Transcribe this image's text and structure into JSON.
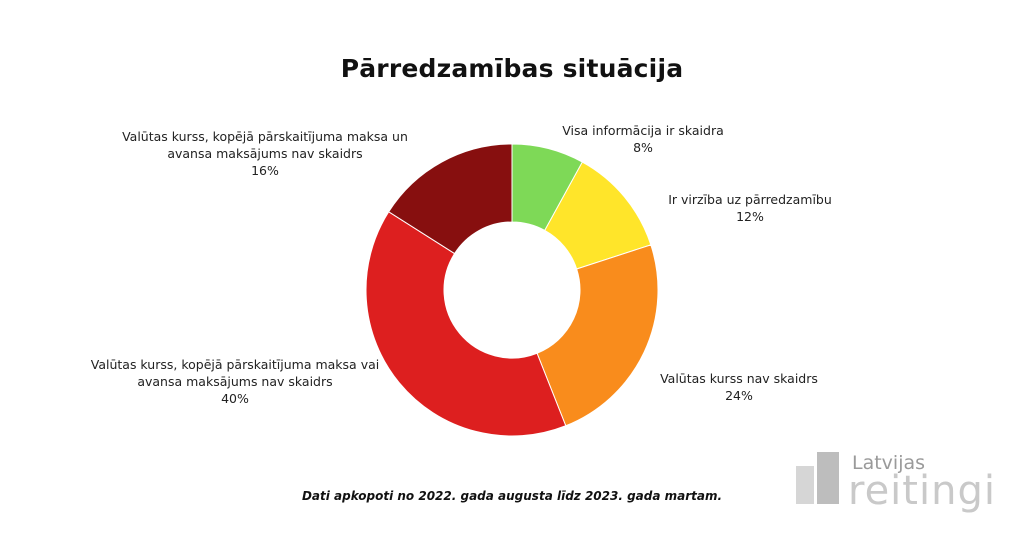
{
  "chart_data": {
    "type": "pie",
    "variant": "donut",
    "title": "Pārredzamības situācija",
    "unit": "%",
    "slices": [
      {
        "lines": [
          "Visa informācija ir skaidra"
        ],
        "value": 8,
        "value_label": "8%",
        "color": "#7ed957"
      },
      {
        "lines": [
          "Ir virzība uz pārredzamību"
        ],
        "value": 12,
        "value_label": "12%",
        "color": "#ffe52a"
      },
      {
        "lines": [
          "Valūtas kurss nav skaidrs"
        ],
        "value": 24,
        "value_label": "24%",
        "color": "#f98c1c"
      },
      {
        "lines": [
          "Valūtas kurss, kopējā pārskaitījuma maksa vai",
          "avansa maksājums nav skaidrs"
        ],
        "value": 40,
        "value_label": "40%",
        "color": "#dd1f1f"
      },
      {
        "lines": [
          "Valūtas kurss, kopējā pārskaitījuma maksa un",
          "avansa maksājums nav skaidrs"
        ],
        "value": 16,
        "value_label": "16%",
        "color": "#870f0f"
      }
    ],
    "start_angle_deg": 0,
    "direction": "clockwise"
  },
  "footnote": "Dati apkopoti no 2022. gada augusta līdz 2023. gada martam.",
  "logo": {
    "line1": "Latvijas",
    "line2": "reitingi"
  }
}
